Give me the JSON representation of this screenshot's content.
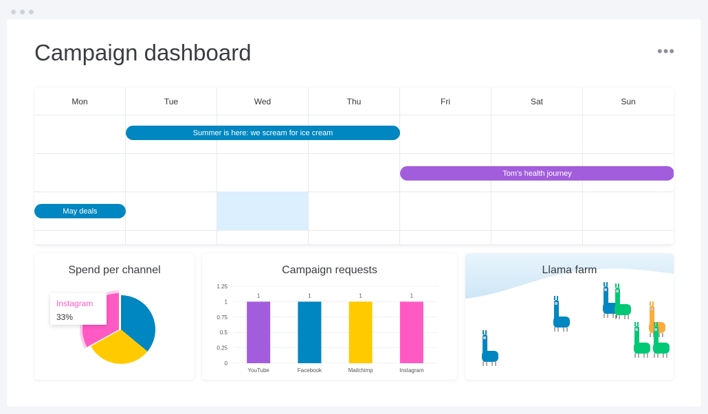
{
  "header": {
    "title": "Campaign dashboard",
    "more_icon": "ellipsis-icon"
  },
  "calendar": {
    "days": [
      "Mon",
      "Tue",
      "Wed",
      "Thu",
      "Fri",
      "Sat",
      "Sun"
    ],
    "events": [
      {
        "label": "Summer is here: we scream for ice cream",
        "color": "#0086c0",
        "row": 0,
        "start_day": "Tue",
        "end_day": "Thu"
      },
      {
        "label": "Tom's health journey",
        "color": "#a25ddc",
        "row": 1,
        "start_day": "Fri",
        "end_day": "Sun"
      },
      {
        "label": "May deals",
        "color": "#0086c0",
        "row": 2,
        "start_day": "Mon",
        "end_day": "Mon"
      }
    ],
    "highlighted_cell": {
      "row": 2,
      "day": "Wed",
      "color": "#dcefff"
    }
  },
  "widgets": {
    "spend": {
      "title": "Spend per channel"
    },
    "requests": {
      "title": "Campaign requests"
    },
    "llama": {
      "title": "Llama farm"
    }
  },
  "chart_data": [
    {
      "type": "pie",
      "title": "Spend per channel",
      "slices": [
        {
          "value": 36,
          "color": "#0086c0"
        },
        {
          "value": 31,
          "color": "#ffcb00"
        },
        {
          "name": "Instagram",
          "value": 33,
          "color": "#ff5ac4"
        }
      ],
      "tooltip": {
        "name": "Instagram",
        "value": "33%"
      }
    },
    {
      "type": "bar",
      "title": "Campaign requests",
      "categories": [
        "YouTube",
        "Facebook",
        "Mailchimp",
        "Instagram"
      ],
      "values": [
        1,
        1,
        1,
        1
      ],
      "data_labels": [
        "1",
        "1",
        "1",
        "1"
      ],
      "colors": [
        "#a25ddc",
        "#0086c0",
        "#ffcb00",
        "#ff5ac4"
      ],
      "yticks": [
        "0",
        "0.25",
        "0.5",
        "0.75",
        "1",
        "1.25"
      ],
      "ylim": [
        0,
        1.25
      ],
      "grid": true
    }
  ],
  "llamas": {
    "colors": [
      "#0086c0",
      "#0086c0",
      "#0086c0",
      "#00c875",
      "#fdab3d",
      "#00c875",
      "#00c875"
    ]
  }
}
